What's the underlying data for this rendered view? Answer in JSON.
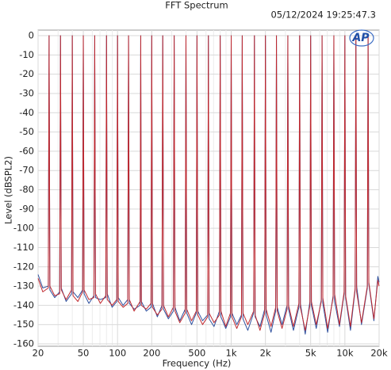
{
  "chart_data": {
    "type": "line",
    "title": "FFT Spectrum",
    "timestamp": "05/12/2024 19:25:47.3",
    "logo": "AP",
    "x_label": "Frequency (Hz)",
    "y_label": "Level (dBSPL2)",
    "xscale": "log",
    "grid": true,
    "xlim": [
      20,
      20000
    ],
    "ylim": [
      -160,
      0
    ],
    "xticks": [
      20,
      50,
      100,
      200,
      500,
      {
        "value": 1000,
        "label": "1k"
      },
      {
        "value": 2000,
        "label": "2k"
      },
      {
        "value": 5000,
        "label": "5k"
      },
      {
        "value": 10000,
        "label": "10k"
      },
      {
        "value": 20000,
        "label": "20k"
      }
    ],
    "x_minor_ticks": [
      30,
      40,
      60,
      70,
      80,
      90,
      300,
      400,
      600,
      700,
      800,
      900,
      3000,
      4000,
      6000,
      7000,
      8000,
      9000
    ],
    "yticks": [
      0,
      -10,
      -20,
      -30,
      -40,
      -50,
      -60,
      -70,
      -80,
      -90,
      -100,
      -110,
      -120,
      -130,
      -140,
      -150,
      -160
    ],
    "x": [
      20,
      22,
      24.6,
      25,
      25.4,
      28,
      31,
      31.5,
      32,
      35.3,
      39.4,
      40,
      40.6,
      44.8,
      49.3,
      50,
      50.8,
      56,
      62,
      63,
      64,
      70.6,
      78.8,
      80,
      81.2,
      89.6,
      98.5,
      100,
      101.5,
      112,
      123,
      125,
      127,
      140,
      158,
      160,
      162,
      179,
      197,
      200,
      203,
      224,
      246,
      250,
      254,
      280,
      310,
      315,
      320,
      353,
      394,
      400,
      406,
      448,
      493,
      500,
      508,
      560,
      621,
      630,
      639,
      706,
      788,
      800,
      812,
      896,
      985,
      1000,
      1015,
      1120,
      1231,
      1250,
      1269,
      1400,
      1576,
      1600,
      1624,
      1792,
      1970,
      2000,
      2030,
      2240,
      2463,
      2500,
      2538,
      2800,
      3103,
      3150,
      3197,
      3528,
      3940,
      4000,
      4060,
      4480,
      4925,
      5000,
      5075,
      5600,
      6206,
      6300,
      6395,
      7056,
      7880,
      8000,
      8120,
      8960,
      9850,
      10000,
      10150,
      11200,
      12313,
      12500,
      12688,
      14000,
      15760,
      16000,
      16240,
      18000,
      19500,
      20000
    ],
    "series": [
      {
        "color": "#2d4f9e",
        "values": [
          -124,
          -131,
          -130,
          0,
          -132,
          -136,
          -133,
          0,
          -131,
          -138,
          -134,
          0,
          -133,
          -136,
          -132,
          0,
          -134,
          -139,
          -135,
          0,
          -136,
          -137,
          -136,
          0,
          -134,
          -141,
          -138,
          0,
          -136,
          -140,
          -137,
          0,
          -139,
          -142,
          -140,
          0,
          -138,
          -143,
          -141,
          0,
          -139,
          -146,
          -140,
          0,
          -142,
          -147,
          -143,
          0,
          -141,
          -148,
          -142,
          0,
          -144,
          -150,
          -144,
          0,
          -143,
          -148,
          -145,
          0,
          -147,
          -151,
          -143,
          0,
          -146,
          -152,
          -146,
          0,
          -144,
          -150,
          -145,
          0,
          -147,
          -153,
          -144,
          0,
          -146,
          -151,
          -142,
          0,
          -145,
          -154,
          -143,
          0,
          -141,
          -150,
          -140,
          0,
          -142,
          -153,
          -141,
          0,
          -139,
          -155,
          -138,
          0,
          -140,
          -152,
          -137,
          0,
          -139,
          -154,
          -135,
          0,
          -138,
          -151,
          -134,
          0,
          -136,
          -153,
          -132,
          0,
          -130,
          -150,
          -131,
          0,
          -129,
          -148,
          -125,
          -128
        ]
      },
      {
        "color": "#c0282e",
        "values": [
          -126,
          -133,
          -131,
          0,
          -130,
          -135,
          -134,
          0,
          -132,
          -137,
          -132,
          0,
          -135,
          -138,
          -133,
          0,
          -132,
          -137,
          -136,
          0,
          -134,
          -139,
          -135,
          0,
          -137,
          -140,
          -137,
          0,
          -138,
          -141,
          -139,
          0,
          -137,
          -143,
          -138,
          0,
          -140,
          -142,
          -139,
          0,
          -141,
          -145,
          -142,
          0,
          -140,
          -146,
          -141,
          0,
          -143,
          -149,
          -144,
          0,
          -142,
          -148,
          -143,
          0,
          -145,
          -150,
          -146,
          0,
          -144,
          -149,
          -145,
          0,
          -143,
          -151,
          -144,
          0,
          -146,
          -152,
          -146,
          0,
          -144,
          -150,
          -143,
          0,
          -145,
          -153,
          -144,
          0,
          -142,
          -151,
          -141,
          0,
          -143,
          -152,
          -142,
          0,
          -140,
          -151,
          -139,
          0,
          -141,
          -153,
          -140,
          0,
          -138,
          -150,
          -138,
          0,
          -136,
          -152,
          -136,
          0,
          -134,
          -150,
          -133,
          0,
          -135,
          -151,
          -131,
          0,
          -133,
          -149,
          -130,
          0,
          -128,
          -147,
          -127,
          -130
        ]
      }
    ]
  }
}
